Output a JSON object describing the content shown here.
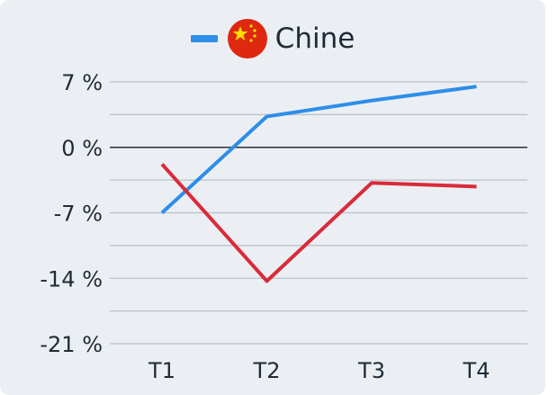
{
  "chart_data": {
    "type": "line",
    "categories": [
      "T1",
      "T2",
      "T3",
      "T4"
    ],
    "ylim": [
      -21,
      7
    ],
    "yticks": [
      7,
      0,
      -7,
      -14,
      -21
    ],
    "ytick_labels": [
      "7 %",
      "0 %",
      "-7 %",
      "-14 %",
      "-21 %"
    ],
    "grid": true,
    "legend_position": "top-center",
    "series": [
      {
        "name": "Chine",
        "color": "#2d8ee8",
        "values": [
          -7.0,
          3.3,
          5.0,
          6.5
        ]
      },
      {
        "color": "#d92b3a",
        "values": [
          -1.8,
          -14.3,
          -3.8,
          -4.2
        ]
      }
    ]
  }
}
